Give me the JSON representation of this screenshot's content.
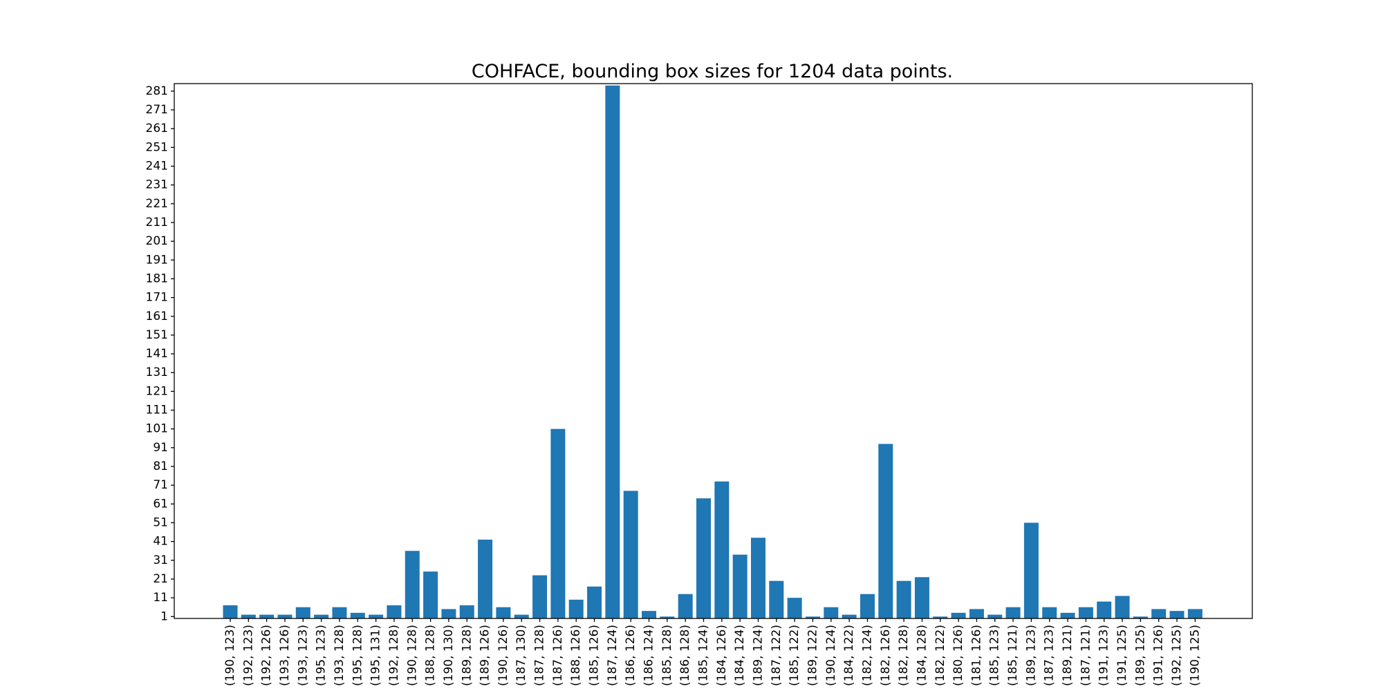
{
  "chart_data": {
    "type": "bar",
    "title": "COHFACE, bounding box sizes for 1204 data points.",
    "xlabel": "",
    "ylabel": "",
    "ylim": [
      0,
      285
    ],
    "yticks": [
      1,
      11,
      21,
      31,
      41,
      51,
      61,
      71,
      81,
      91,
      101,
      111,
      121,
      131,
      141,
      151,
      161,
      171,
      181,
      191,
      201,
      211,
      221,
      231,
      241,
      251,
      261,
      271,
      281
    ],
    "grid": false,
    "bar_color": "#1f77b4",
    "categories": [
      "(190, 123)",
      "(192, 123)",
      "(192, 126)",
      "(193, 126)",
      "(193, 123)",
      "(195, 123)",
      "(193, 128)",
      "(195, 128)",
      "(195, 131)",
      "(192, 128)",
      "(190, 128)",
      "(188, 128)",
      "(190, 130)",
      "(189, 128)",
      "(189, 126)",
      "(190, 126)",
      "(187, 130)",
      "(187, 128)",
      "(187, 126)",
      "(188, 126)",
      "(185, 126)",
      "(187, 124)",
      "(186, 126)",
      "(186, 124)",
      "(185, 128)",
      "(186, 128)",
      "(185, 124)",
      "(184, 126)",
      "(184, 124)",
      "(189, 124)",
      "(187, 122)",
      "(185, 122)",
      "(189, 122)",
      "(190, 124)",
      "(184, 122)",
      "(182, 124)",
      "(182, 126)",
      "(182, 128)",
      "(184, 128)",
      "(182, 122)",
      "(180, 126)",
      "(181, 126)",
      "(185, 123)",
      "(185, 121)",
      "(189, 123)",
      "(187, 123)",
      "(189, 121)",
      "(187, 121)",
      "(191, 123)",
      "(191, 125)",
      "(189, 125)",
      "(191, 126)",
      "(192, 125)",
      "(190, 125)"
    ],
    "values": [
      7,
      2,
      2,
      2,
      6,
      2,
      6,
      3,
      2,
      7,
      36,
      25,
      5,
      7,
      42,
      6,
      2,
      23,
      101,
      10,
      17,
      284,
      68,
      4,
      1,
      13,
      64,
      73,
      34,
      43,
      20,
      11,
      1,
      6,
      2,
      13,
      93,
      20,
      22,
      1,
      3,
      5,
      2,
      6,
      51,
      6,
      3,
      6,
      9,
      12,
      1,
      5,
      4,
      5
    ]
  }
}
